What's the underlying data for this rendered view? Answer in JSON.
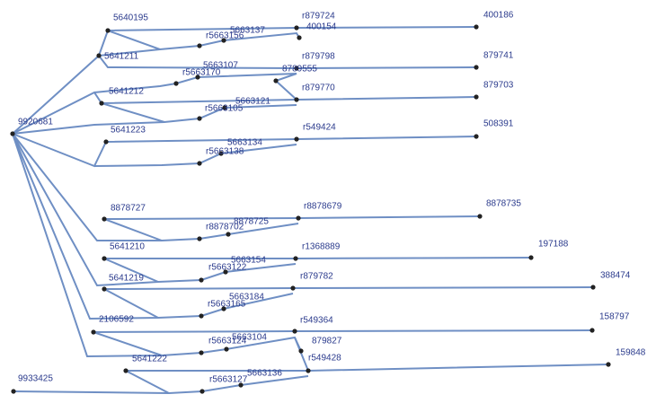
{
  "nodes": [
    {
      "label": "9920681"
    },
    {
      "label": "5640195"
    },
    {
      "label": "5641211"
    },
    {
      "label": "r5663156"
    },
    {
      "label": "5663137"
    },
    {
      "label": "r879724"
    },
    {
      "label": "400154"
    },
    {
      "label": "400186"
    },
    {
      "label": "5663107"
    },
    {
      "label": "r879798"
    },
    {
      "label": "8789555"
    },
    {
      "label": "879741"
    },
    {
      "label": "5641212"
    },
    {
      "label": "r879770"
    },
    {
      "label": "5663121"
    },
    {
      "label": "r5663105"
    },
    {
      "label": "879703"
    },
    {
      "label": "5641223"
    },
    {
      "label": "r549424"
    },
    {
      "label": "5663134"
    },
    {
      "label": "r5663138"
    },
    {
      "label": "508391"
    },
    {
      "label": "8878727"
    },
    {
      "label": "r8878679"
    },
    {
      "label": "8878725"
    },
    {
      "label": "r8878702"
    },
    {
      "label": "8878735"
    },
    {
      "label": "5641210"
    },
    {
      "label": "r1368889"
    },
    {
      "label": "5663154"
    },
    {
      "label": "r5663122"
    },
    {
      "label": "197188"
    },
    {
      "label": "5641219"
    },
    {
      "label": "r879782"
    },
    {
      "label": "5663184"
    },
    {
      "label": "r5663165"
    },
    {
      "label": "388474"
    },
    {
      "label": "2106592"
    },
    {
      "label": "r549364"
    },
    {
      "label": "5663104"
    },
    {
      "label": "r5663124"
    },
    {
      "label": "879827"
    },
    {
      "label": "r549428"
    },
    {
      "label": "158797"
    },
    {
      "label": "5641222"
    },
    {
      "label": "5663136"
    },
    {
      "label": "r5663127"
    },
    {
      "label": "159848"
    },
    {
      "label": "9933425"
    },
    {
      "label": "r5663170"
    }
  ]
}
